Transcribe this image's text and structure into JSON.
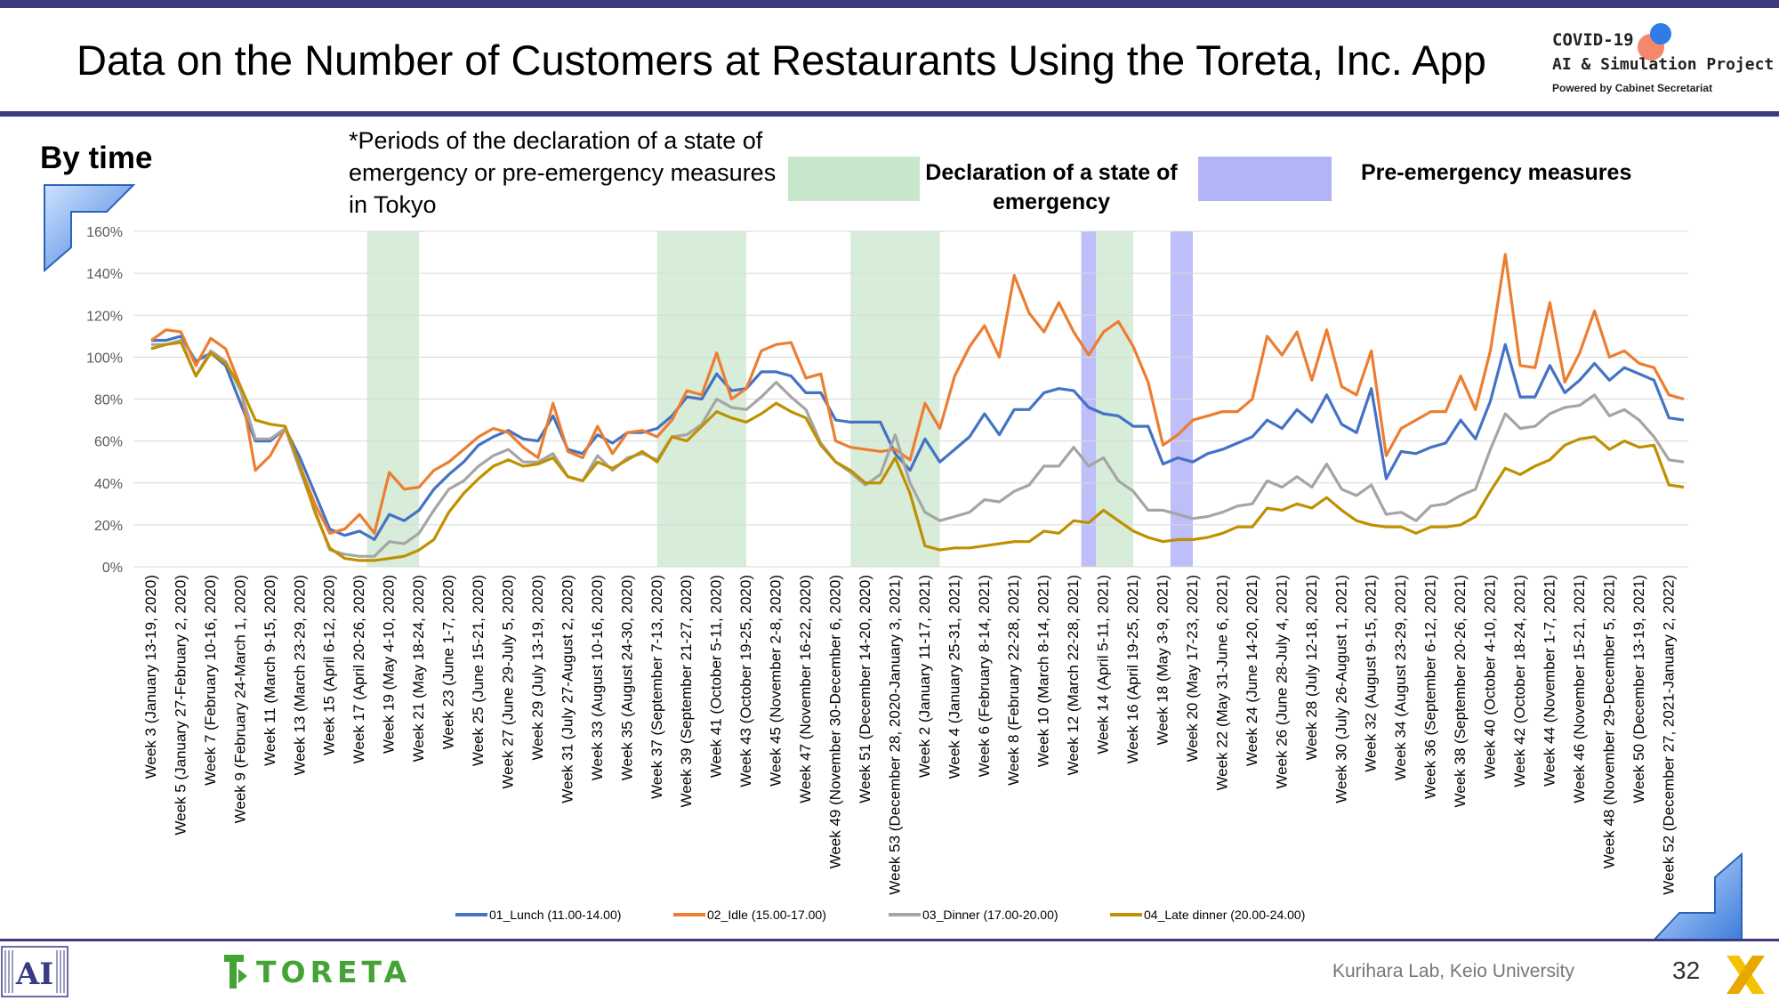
{
  "header": {
    "title": "Data on the Number of Customers at Restaurants Using the Toreta, Inc. App",
    "logo_line1": "COVID-19",
    "logo_line2": "AI & Simulation Project",
    "logo_line3": "Powered by Cabinet Secretariat"
  },
  "section_label": "By time",
  "note": "*Periods of the declaration of a state of emergency or pre-emergency measures in Tokyo",
  "period_legend": {
    "emergency_label": "Declaration of a state of emergency",
    "pre_emergency_label": "Pre-emergency measures",
    "emergency_color": "#c8e6c9",
    "pre_emergency_color": "#b3b3f7"
  },
  "footer": {
    "brand": "TORETA",
    "lab": "Kurihara Lab, Keio University",
    "page_number": "32"
  },
  "chart_data": {
    "type": "line",
    "ylim": [
      0,
      160
    ],
    "yticks": [
      "0%",
      "20%",
      "40%",
      "60%",
      "80%",
      "100%",
      "120%",
      "140%",
      "160%"
    ],
    "grid": true,
    "legend_position": "bottom",
    "x_labels": [
      "Week 3 (January 13-19, 2020)",
      "Week 5 (January 27-February 2, 2020)",
      "Week 7 (February 10-16, 2020)",
      "Week 9 (February 24-March 1, 2020)",
      "Week 11 (March 9-15, 2020)",
      "Week 13 (March 23-29, 2020)",
      "Week 15 (April 6-12, 2020)",
      "Week 17 (April 20-26, 2020)",
      "Week 19 (May 4-10, 2020)",
      "Week 21 (May 18-24, 2020)",
      "Week 23 (June 1-7, 2020)",
      "Week 25 (June 15-21, 2020)",
      "Week 27 (June 29-July 5, 2020)",
      "Week 29 (July 13-19, 2020)",
      "Week 31 (July 27-August 2, 2020)",
      "Week 33 (August 10-16, 2020)",
      "Week 35 (August 24-30, 2020)",
      "Week 37 (September 7-13, 2020)",
      "Week 39 (September 21-27, 2020)",
      "Week 41 (October 5-11, 2020)",
      "Week 43 (October 19-25, 2020)",
      "Week 45 (November 2-8, 2020)",
      "Week 47 (November 16-22, 2020)",
      "Week 49 (November 30-December 6, 2020)",
      "Week 51 (December 14-20, 2020)",
      "Week 53 (December 28, 2020-January 3, 2021)",
      "Week 2 (January 11-17, 2021)",
      "Week 4 (January 25-31, 2021)",
      "Week 6 (February 8-14, 2021)",
      "Week 8 (February 22-28, 2021)",
      "Week 10 (March 8-14, 2021)",
      "Week 12 (March 22-28, 2021)",
      "Week 14 (April 5-11, 2021)",
      "Week 16 (April 19-25, 2021)",
      "Week 18 (May 3-9, 2021)",
      "Week 20 (May 17-23, 2021)",
      "Week 22 (May 31-June 6, 2021)",
      "Week 24 (June 14-20, 2021)",
      "Week 26 (June 28-July 4, 2021)",
      "Week 28 (July 12-18, 2021)",
      "Week 30 (July 26-August 1, 2021)",
      "Week 32 (August 9-15, 2021)",
      "Week 34 (August 23-29, 2021)",
      "Week 36 (September 6-12, 2021)",
      "Week 38 (September 20-26, 2021)",
      "Week 40 (October 4-10, 2021)",
      "Week 42 (October 18-24, 2021)",
      "Week 44 (November 1-7, 2021)",
      "Week 46 (November 15-21, 2021)",
      "Week 48 (November 29-December 5, 2021)",
      "Week 50 (December 13-19, 2021)",
      "Week 52 (December 27, 2021-January 2, 2022)"
    ],
    "n_points": 104,
    "emergency_periods": [
      [
        14.5,
        18
      ],
      [
        34,
        40
      ],
      [
        47,
        53
      ],
      [
        63.5,
        66
      ]
    ],
    "pre_emergency_periods": [
      [
        62.5,
        63.5
      ],
      [
        68.5,
        70
      ]
    ],
    "series": [
      {
        "name": "01_Lunch (11.00-14.00)",
        "color": "#4472c4",
        "values": [
          108,
          108,
          110,
          98,
          102,
          96,
          78,
          60,
          60,
          66,
          52,
          35,
          18,
          15,
          17,
          13,
          25,
          22,
          27,
          37,
          44,
          50,
          58,
          62,
          65,
          61,
          60,
          72,
          56,
          54,
          63,
          59,
          64,
          64,
          66,
          72,
          81,
          80,
          92,
          84,
          85,
          93,
          93,
          91,
          83,
          83,
          70,
          69,
          69,
          69,
          54,
          46,
          61,
          50,
          56,
          62,
          73,
          63,
          75,
          75,
          83,
          85,
          84,
          76,
          73,
          72,
          67,
          67,
          49,
          52,
          50,
          54,
          56,
          59,
          62,
          70,
          66,
          75,
          69,
          82,
          68,
          64,
          85,
          42,
          55,
          54,
          57,
          59,
          70,
          61,
          79,
          106,
          81,
          81,
          96,
          83,
          89,
          97,
          89,
          95,
          92,
          89,
          71,
          70
        ]
      },
      {
        "name": "02_Idle (15.00-17.00)",
        "color": "#ed7d31",
        "values": [
          108,
          113,
          112,
          96,
          109,
          104,
          86,
          46,
          53,
          66,
          48,
          30,
          16,
          18,
          25,
          16,
          45,
          37,
          38,
          46,
          50,
          56,
          62,
          66,
          64,
          57,
          52,
          78,
          55,
          52,
          67,
          54,
          64,
          65,
          62,
          70,
          84,
          82,
          102,
          80,
          85,
          103,
          106,
          107,
          90,
          92,
          60,
          57,
          56,
          55,
          56,
          51,
          78,
          66,
          91,
          105,
          115,
          100,
          139,
          121,
          112,
          126,
          112,
          101,
          112,
          117,
          105,
          88,
          58,
          63,
          70,
          72,
          74,
          74,
          80,
          110,
          101,
          112,
          89,
          113,
          86,
          82,
          103,
          53,
          66,
          70,
          74,
          74,
          91,
          75,
          103,
          149,
          96,
          95,
          126,
          88,
          102,
          122,
          100,
          103,
          97,
          95,
          82,
          80
        ]
      },
      {
        "name": "03_Dinner (17.00-20.00)",
        "color": "#a5a5a5",
        "values": [
          106,
          106,
          108,
          91,
          103,
          98,
          84,
          61,
          61,
          66,
          46,
          27,
          8,
          6,
          5,
          5,
          12,
          11,
          16,
          27,
          37,
          41,
          48,
          53,
          56,
          50,
          50,
          54,
          43,
          41,
          53,
          46,
          52,
          54,
          51,
          62,
          63,
          68,
          80,
          76,
          75,
          81,
          88,
          81,
          75,
          59,
          50,
          45,
          39,
          44,
          63,
          40,
          26,
          22,
          24,
          26,
          32,
          31,
          36,
          39,
          48,
          48,
          57,
          48,
          52,
          41,
          36,
          27,
          27,
          25,
          23,
          24,
          26,
          29,
          30,
          41,
          38,
          43,
          38,
          49,
          37,
          34,
          39,
          25,
          26,
          22,
          29,
          30,
          34,
          37,
          56,
          73,
          66,
          67,
          73,
          76,
          77,
          82,
          72,
          75,
          70,
          62,
          51,
          50
        ]
      },
      {
        "name": "04_Late dinner (20.00-24.00)",
        "color": "#bf9000",
        "values": [
          104,
          106,
          107,
          91,
          102,
          97,
          86,
          70,
          68,
          67,
          48,
          26,
          9,
          4,
          3,
          3,
          4,
          5,
          8,
          13,
          26,
          35,
          42,
          48,
          51,
          48,
          49,
          52,
          43,
          41,
          50,
          47,
          51,
          55,
          50,
          62,
          60,
          67,
          74,
          71,
          69,
          73,
          78,
          74,
          71,
          58,
          50,
          46,
          40,
          40,
          52,
          35,
          10,
          8,
          9,
          9,
          10,
          11,
          12,
          12,
          17,
          16,
          22,
          21,
          27,
          22,
          17,
          14,
          12,
          13,
          13,
          14,
          16,
          19,
          19,
          28,
          27,
          30,
          28,
          33,
          27,
          22,
          20,
          19,
          19,
          16,
          19,
          19,
          20,
          24,
          36,
          47,
          44,
          48,
          51,
          58,
          61,
          62,
          56,
          60,
          57,
          58,
          39,
          38
        ]
      }
    ]
  }
}
